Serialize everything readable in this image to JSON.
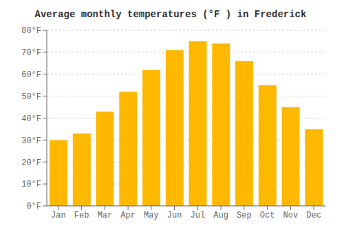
{
  "chart_data": {
    "type": "bar",
    "title": "Average monthly temperatures (°F ) in Frederick",
    "categories": [
      "Jan",
      "Feb",
      "Mar",
      "Apr",
      "May",
      "Jun",
      "Jul",
      "Aug",
      "Sep",
      "Oct",
      "Nov",
      "Dec"
    ],
    "values": [
      30,
      33,
      43,
      52,
      62,
      71,
      75,
      74,
      66,
      55,
      45,
      35
    ],
    "color": "#FFB800",
    "ylim": [
      0,
      80
    ],
    "yticks": [
      {
        "value": 0,
        "label": "0°F"
      },
      {
        "value": 10,
        "label": "10°F"
      },
      {
        "value": 20,
        "label": "20°F"
      },
      {
        "value": 30,
        "label": "30°F"
      },
      {
        "value": 40,
        "label": "40°F"
      },
      {
        "value": 50,
        "label": "50°F"
      },
      {
        "value": 60,
        "label": "60°F"
      },
      {
        "value": 70,
        "label": "70°F"
      },
      {
        "value": 80,
        "label": "80°F"
      }
    ],
    "grid": true
  }
}
